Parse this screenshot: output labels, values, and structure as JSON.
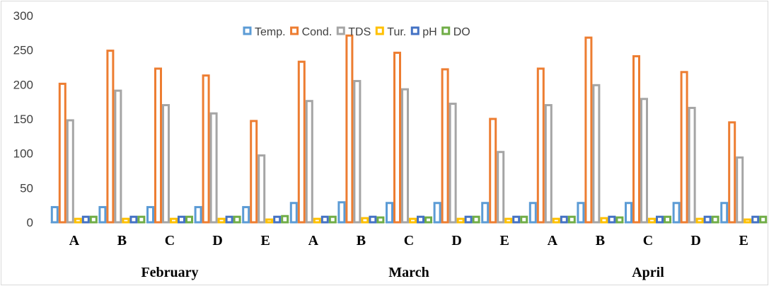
{
  "chart_data": {
    "type": "bar",
    "title": "",
    "xlabel": "",
    "ylabel": "",
    "ylim": [
      0,
      300
    ],
    "yticks": [
      0,
      50,
      100,
      150,
      200,
      250,
      300
    ],
    "grid": false,
    "legend_position": "top",
    "groups": [
      {
        "label": "February",
        "categories": [
          "A",
          "B",
          "C",
          "D",
          "E"
        ]
      },
      {
        "label": "March",
        "categories": [
          "A",
          "B",
          "C",
          "D",
          "E"
        ]
      },
      {
        "label": "April",
        "categories": [
          "A",
          "B",
          "C",
          "D",
          "E"
        ]
      }
    ],
    "series": [
      {
        "name": "Temp.",
        "color": "#5B9BD5",
        "values": [
          22,
          22,
          22,
          22,
          22,
          28,
          29,
          28,
          28,
          28,
          28,
          28,
          28,
          28,
          28
        ]
      },
      {
        "name": "Cond.",
        "color": "#ED7D31",
        "values": [
          201,
          249,
          223,
          213,
          147,
          233,
          271,
          246,
          222,
          150,
          223,
          268,
          241,
          218,
          145
        ]
      },
      {
        "name": "TDS",
        "color": "#A5A5A5",
        "values": [
          148,
          191,
          170,
          158,
          97,
          176,
          205,
          193,
          172,
          102,
          170,
          199,
          179,
          166,
          94
        ]
      },
      {
        "name": "Tur.",
        "color": "#FFC000",
        "values": [
          5,
          5,
          5,
          5,
          4,
          5,
          6,
          5,
          5,
          5,
          5,
          6,
          5,
          5,
          4
        ]
      },
      {
        "name": "pH",
        "color": "#4472C4",
        "values": [
          8,
          8,
          8,
          8,
          8,
          8,
          8,
          8,
          8,
          8,
          8,
          8,
          8,
          8,
          8
        ]
      },
      {
        "name": "DO",
        "color": "#70AD47",
        "values": [
          8,
          8,
          8,
          8,
          9,
          8,
          7,
          7,
          8,
          8,
          8,
          7,
          8,
          8,
          8
        ]
      }
    ]
  }
}
